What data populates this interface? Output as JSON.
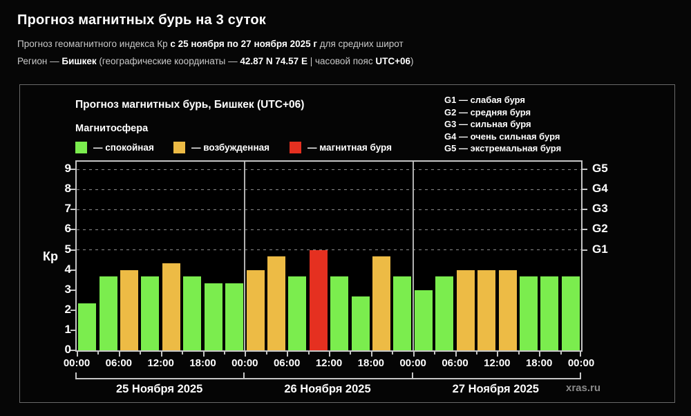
{
  "header": {
    "title": "Прогноз магнитных бурь на 3 суток",
    "subtitle": {
      "prefix": "Прогноз геомагнитного индекса Кр ",
      "range": "с 25 ноября по 27 ноября 2025 г",
      "suffix": " для средних широт"
    },
    "region": {
      "prefix": "Регион — ",
      "city": "Бишкек",
      "mid": " (географические координаты — ",
      "coords": "42.87 N 74.57 E",
      "sep": " | часовой пояс ",
      "tz": "UTC+06",
      "close": ")"
    }
  },
  "panel": {
    "title": "Прогноз магнитных бурь, Бишкек (UTC+06)",
    "legend_title": "Магнитосфера",
    "legend_items": [
      {
        "key": "quiet",
        "color": "#7bed4e",
        "label": "— спокойная"
      },
      {
        "key": "excited",
        "color": "#edbb45",
        "label": "— возбужденная"
      },
      {
        "key": "storm",
        "color": "#e53020",
        "label": "— магнитная буря"
      }
    ],
    "g_legend": [
      "G1 — слабая буря",
      "G2 — средняя буря",
      "G3 — сильная буря",
      "G4 — очень сильная буря",
      "G5 — экстремальная буря"
    ],
    "y_axis_label": "Кр",
    "watermark": "xras.ru"
  },
  "chart_data": {
    "type": "bar",
    "title": "Прогноз магнитных бурь, Бишкек (UTC+06)",
    "ylabel": "Кр",
    "ylim": [
      0,
      9.35
    ],
    "y_ticks": [
      0,
      1,
      2,
      3,
      4,
      5,
      6,
      7,
      8,
      9
    ],
    "grid_levels": [
      5,
      6,
      7,
      8,
      9
    ],
    "grid_style": "dashed",
    "legend_position": "top-left",
    "right_axis": [
      {
        "label": "G1",
        "kp": 5
      },
      {
        "label": "G2",
        "kp": 6
      },
      {
        "label": "G3",
        "kp": 7
      },
      {
        "label": "G4",
        "kp": 8
      },
      {
        "label": "G5",
        "kp": 9
      }
    ],
    "x_tick_labels": [
      "00:00",
      "06:00",
      "12:00",
      "18:00",
      "00:00",
      "06:00",
      "12:00",
      "18:00",
      "00:00",
      "06:00",
      "12:00",
      "18:00",
      "00:00"
    ],
    "bar_interval_hours": 3,
    "colors": {
      "quiet": "#7bed4e",
      "excited": "#edbb45",
      "storm": "#e53020"
    },
    "days": [
      {
        "date": "25 Ноября 2025",
        "values": [
          2.33,
          3.67,
          4.0,
          3.67,
          4.33,
          3.67,
          3.33,
          3.33
        ],
        "status": [
          "quiet",
          "quiet",
          "excited",
          "quiet",
          "excited",
          "quiet",
          "quiet",
          "quiet"
        ]
      },
      {
        "date": "26 Ноября 2025",
        "values": [
          4.0,
          4.67,
          3.67,
          5.0,
          3.67,
          2.67,
          4.67,
          3.67
        ],
        "status": [
          "excited",
          "excited",
          "quiet",
          "storm",
          "quiet",
          "quiet",
          "excited",
          "quiet"
        ]
      },
      {
        "date": "27 Ноября 2025",
        "values": [
          3.0,
          3.67,
          4.0,
          4.0,
          4.0,
          3.67,
          3.67,
          3.67
        ],
        "status": [
          "quiet",
          "quiet",
          "excited",
          "excited",
          "excited",
          "quiet",
          "quiet",
          "quiet"
        ]
      }
    ]
  }
}
